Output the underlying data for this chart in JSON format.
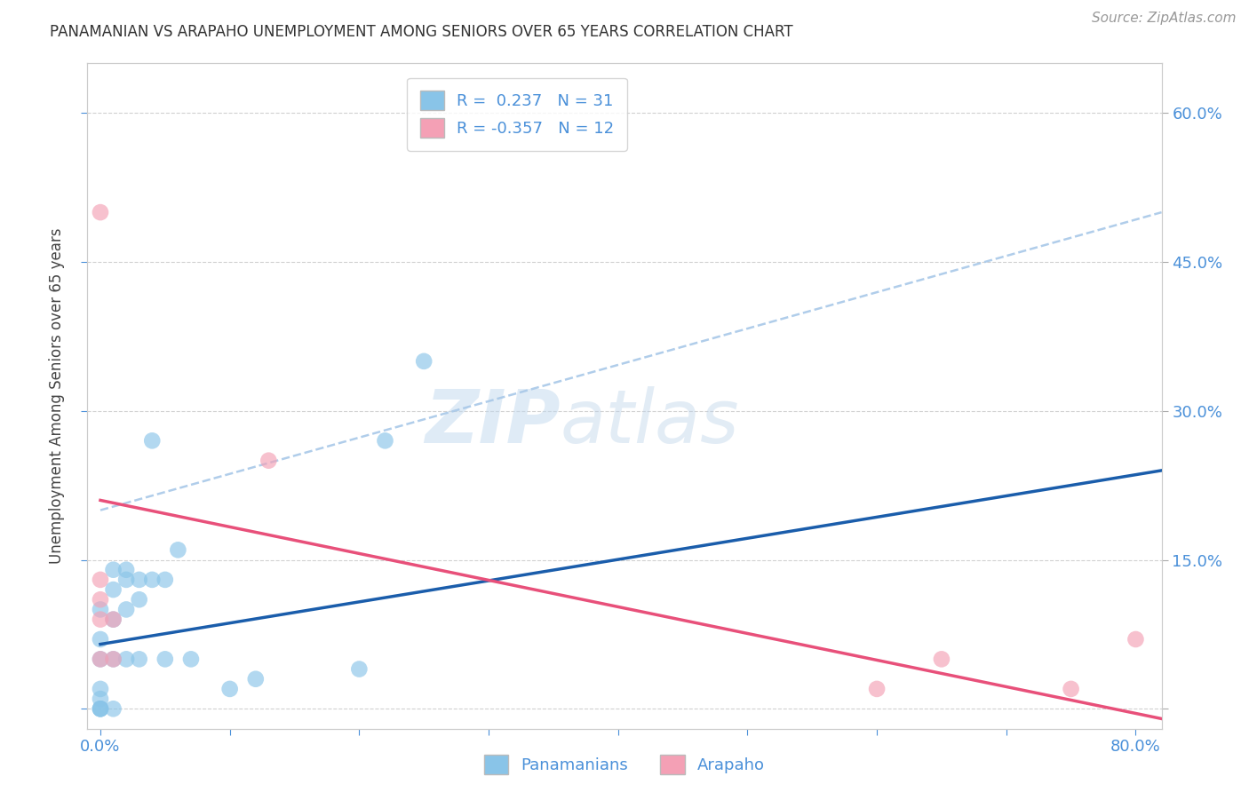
{
  "title": "PANAMANIAN VS ARAPAHO UNEMPLOYMENT AMONG SENIORS OVER 65 YEARS CORRELATION CHART",
  "source": "Source: ZipAtlas.com",
  "ylabel": "Unemployment Among Seniors over 65 years",
  "xlim": [
    -0.01,
    0.82
  ],
  "ylim": [
    -0.02,
    0.65
  ],
  "xticks": [
    0.0,
    0.1,
    0.2,
    0.3,
    0.4,
    0.5,
    0.6,
    0.7,
    0.8
  ],
  "xticklabels": [
    "0.0%",
    "",
    "",
    "",
    "",
    "",
    "",
    "",
    "80.0%"
  ],
  "yticks": [
    0.0,
    0.15,
    0.3,
    0.45,
    0.6
  ],
  "yticklabels": [
    "",
    "15.0%",
    "30.0%",
    "45.0%",
    "60.0%"
  ],
  "panamanian_x": [
    0.0,
    0.0,
    0.0,
    0.0,
    0.0,
    0.0,
    0.0,
    0.0,
    0.01,
    0.01,
    0.01,
    0.01,
    0.01,
    0.02,
    0.02,
    0.02,
    0.02,
    0.03,
    0.03,
    0.03,
    0.04,
    0.04,
    0.05,
    0.05,
    0.06,
    0.07,
    0.1,
    0.12,
    0.2,
    0.22,
    0.25
  ],
  "panamanian_y": [
    0.0,
    0.0,
    0.0,
    0.01,
    0.02,
    0.05,
    0.07,
    0.1,
    0.0,
    0.05,
    0.09,
    0.12,
    0.14,
    0.05,
    0.1,
    0.13,
    0.14,
    0.05,
    0.11,
    0.13,
    0.13,
    0.27,
    0.05,
    0.13,
    0.16,
    0.05,
    0.02,
    0.03,
    0.04,
    0.27,
    0.35
  ],
  "arapaho_x": [
    0.0,
    0.0,
    0.0,
    0.0,
    0.0,
    0.01,
    0.01,
    0.13,
    0.6,
    0.65,
    0.75,
    0.8
  ],
  "arapaho_y": [
    0.05,
    0.09,
    0.11,
    0.13,
    0.5,
    0.05,
    0.09,
    0.25,
    0.02,
    0.05,
    0.02,
    0.07
  ],
  "pana_color": "#89C4E8",
  "arap_color": "#F4A0B5",
  "pana_line_color": "#1A5DAB",
  "arap_line_color": "#E8507A",
  "dashed_line_color": "#A8C8E8",
  "R_pana": 0.237,
  "N_pana": 31,
  "R_arap": -0.357,
  "N_arap": 12,
  "legend_label_pana": "Panamanians",
  "legend_label_arap": "Arapaho",
  "watermark_zip": "ZIP",
  "watermark_atlas": "atlas",
  "background_color": "#FFFFFF",
  "pana_line_x0": 0.0,
  "pana_line_y0": 0.065,
  "pana_line_x1": 0.82,
  "pana_line_y1": 0.24,
  "arap_line_x0": 0.0,
  "arap_line_y0": 0.21,
  "arap_line_x1": 0.82,
  "arap_line_y1": -0.01,
  "dash_line_x0": 0.0,
  "dash_line_y0": 0.2,
  "dash_line_x1": 0.82,
  "dash_line_y1": 0.5
}
